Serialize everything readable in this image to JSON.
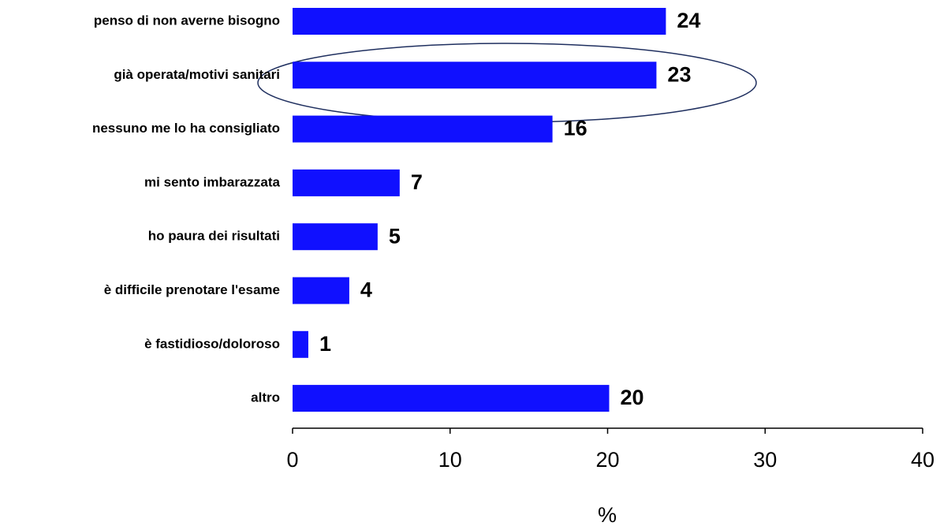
{
  "chart_data": {
    "type": "hbar",
    "categories": [
      "penso di non averne bisogno",
      "già operata/motivi sanitari",
      "nessuno me lo ha consigliato",
      "mi sento imbarazzata",
      "ho paura dei risultati",
      "è difficile prenotare l'esame",
      "è fastidioso/doloroso",
      "altro"
    ],
    "values": [
      23.7,
      23.1,
      16.5,
      6.8,
      5.4,
      3.6,
      1.0,
      20.1
    ],
    "value_labels": [
      "24",
      "23",
      "16",
      "7",
      "5",
      "4",
      "1",
      "20"
    ],
    "color": "#1010ff",
    "xlim": [
      0,
      40
    ],
    "xticks": [
      0,
      10,
      20,
      30,
      40
    ],
    "xlabel": "%"
  }
}
